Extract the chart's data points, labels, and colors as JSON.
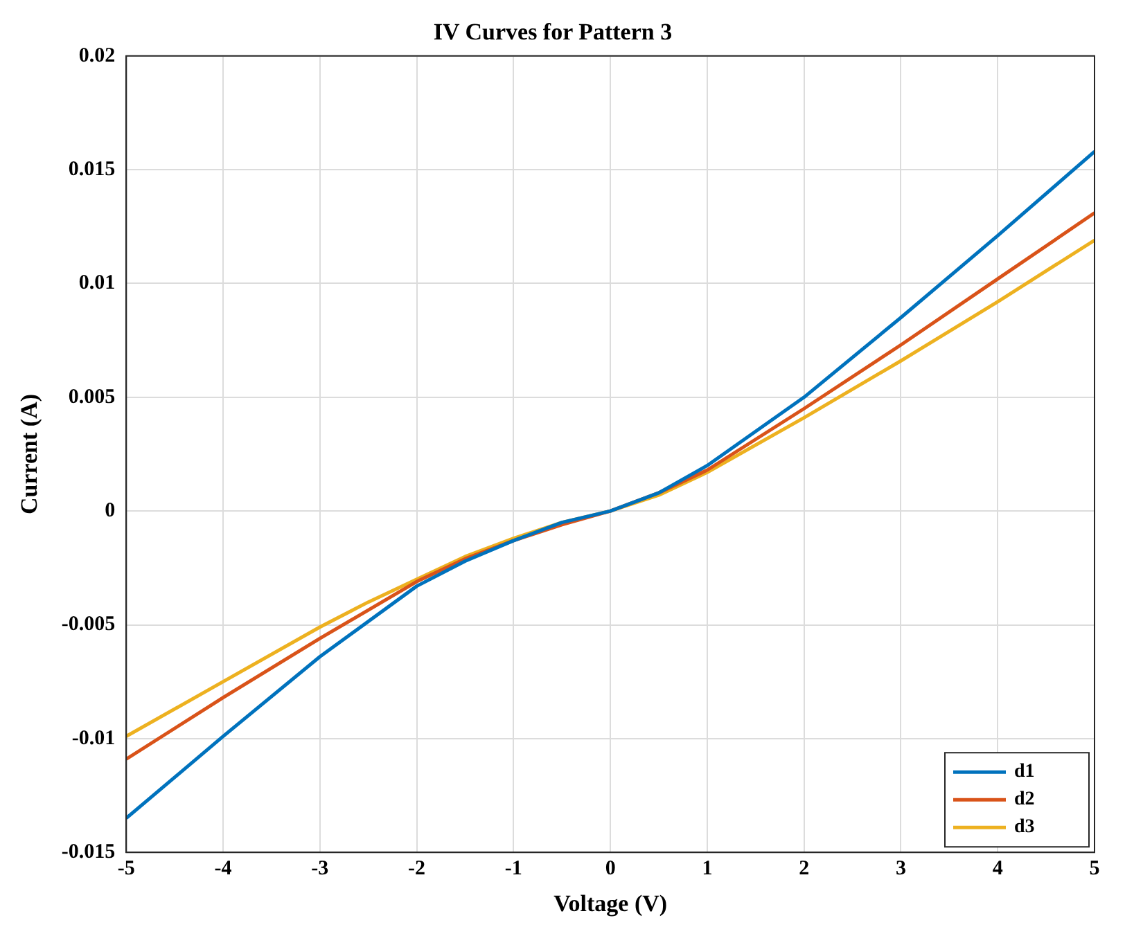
{
  "chart_data": {
    "type": "line",
    "title": "IV Curves for Pattern 3",
    "xlabel": "Voltage (V)",
    "ylabel": "Current (A)",
    "xlim": [
      -5,
      5
    ],
    "xticks": [
      -5,
      -4,
      -3,
      -2,
      -1,
      0,
      1,
      2,
      3,
      4,
      5
    ],
    "ylim": [
      -0.015,
      0.02
    ],
    "yticks": [
      -0.015,
      -0.01,
      -0.005,
      0,
      0.005,
      0.01,
      0.015,
      0.02
    ],
    "grid": true,
    "legend": "bottom right",
    "marker": "none",
    "line_style": "solid",
    "series": [
      {
        "name": "d1",
        "color": "#0072bd",
        "x": [
          -5,
          -4,
          -3,
          -2,
          -1.5,
          -1,
          -0.5,
          0,
          0.5,
          1,
          2,
          3,
          4,
          5
        ],
        "values": [
          -0.0135,
          -0.0099,
          -0.0064,
          -0.0033,
          -0.0022,
          -0.0013,
          -0.0005,
          0,
          0.0008,
          0.002,
          0.005,
          0.0085,
          0.0121,
          0.0158
        ]
      },
      {
        "name": "d2",
        "color": "#d95319",
        "x": [
          -5,
          -4,
          -3,
          -2,
          -1.5,
          -1,
          -0.5,
          0,
          0.5,
          1,
          2,
          3,
          4,
          5
        ],
        "values": [
          -0.0109,
          -0.0082,
          -0.0056,
          -0.0031,
          -0.0021,
          -0.0013,
          -0.0006,
          0,
          0.0008,
          0.0018,
          0.0045,
          0.0073,
          0.0102,
          0.0131
        ]
      },
      {
        "name": "d3",
        "color": "#edb120",
        "x": [
          -5,
          -4,
          -3,
          -2.5,
          -2,
          -1.5,
          -1,
          -0.5,
          0,
          0.5,
          1,
          2,
          3,
          4,
          5
        ],
        "values": [
          -0.0099,
          -0.0075,
          -0.0051,
          -0.004,
          -0.003,
          -0.002,
          -0.0012,
          -0.0005,
          0,
          0.0007,
          0.0017,
          0.0041,
          0.0066,
          0.0092,
          0.0119
        ]
      }
    ]
  }
}
